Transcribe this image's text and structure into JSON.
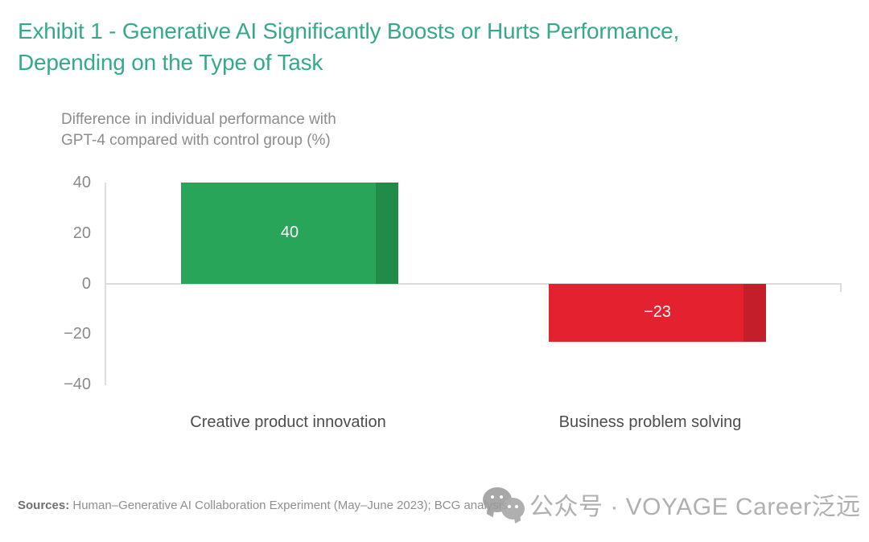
{
  "page": {
    "background": "#ffffff"
  },
  "title": {
    "line1": "Exhibit 1 - Generative AI Significantly Boosts or Hurts Performance,",
    "line2": "Depending on the Type of Task",
    "color": "#35a98c"
  },
  "chart_data": {
    "type": "bar",
    "subtitle_lines": [
      "Difference in individual performance with",
      "GPT-4 compared with control group (%)"
    ],
    "categories": [
      "Creative product innovation",
      "Business problem solving"
    ],
    "values": [
      40,
      -23
    ],
    "value_labels": [
      "40",
      "−23"
    ],
    "bar_colors": [
      "#29a55a",
      "#e3212f"
    ],
    "bar_edge_colors": [
      "#1f8c4a",
      "#c51e2b"
    ],
    "value_label_color": "#ffffff",
    "ylim": [
      -40,
      40
    ],
    "yticks": [
      40,
      20,
      0,
      -20,
      -40
    ],
    "ytick_labels": [
      "40",
      "20",
      "0",
      "−20",
      "−40"
    ],
    "grid": false,
    "legend": "none",
    "axis_color": "#dcdcdc"
  },
  "footer": {
    "sources_label": "Sources:",
    "sources_text": " Human–Generative AI Collaboration Experiment (May–June 2023); BCG analysis."
  },
  "watermark": {
    "icon": "wechat-icon",
    "text": "公众号 · VOYAGE Career泛远",
    "color": "#b0b0b0"
  }
}
